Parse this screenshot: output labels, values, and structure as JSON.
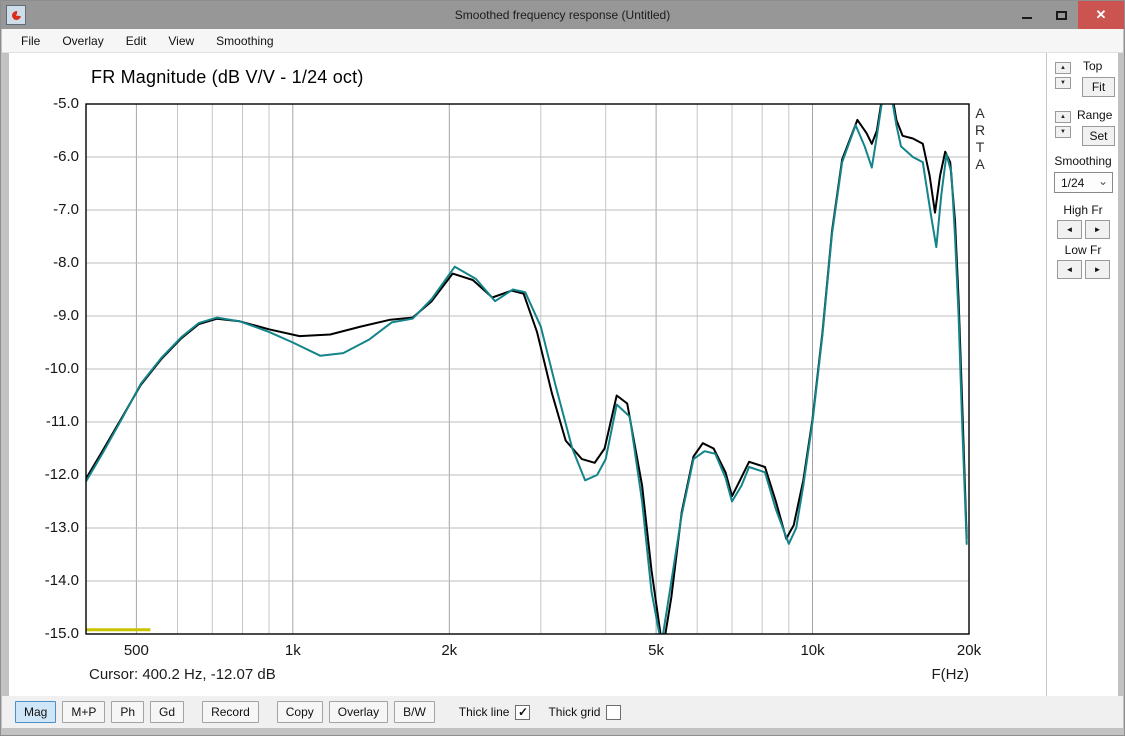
{
  "window": {
    "title": "Smoothed frequency response (Untitled)",
    "controls": {
      "minimize": "minimize",
      "maximize": "maximize",
      "close_glyph": "✕"
    },
    "colors": {
      "titlebar": "#979797",
      "close_button": "#cb5450"
    }
  },
  "menu": {
    "items": [
      "File",
      "Overlay",
      "Edit",
      "View",
      "Smoothing"
    ]
  },
  "chart": {
    "title": "FR Magnitude (dB V/V - 1/24 oct)",
    "cursor_readout": "Cursor: 400.2 Hz, -12.07 dB",
    "x_unit_label": "F(Hz)",
    "watermark": "ARTA"
  },
  "chart_data": {
    "type": "line",
    "title": "FR Magnitude (dB V/V - 1/24 oct)",
    "xlabel": "F(Hz)",
    "ylabel": "dB",
    "x_scale": "log",
    "x_range": [
      400,
      20000
    ],
    "y_range": [
      -15,
      -5
    ],
    "grid": true,
    "x_gridlines": [
      {
        "f": 500,
        "label": "500",
        "major": true
      },
      {
        "f": 600,
        "major": false
      },
      {
        "f": 700,
        "major": false
      },
      {
        "f": 800,
        "major": false
      },
      {
        "f": 900,
        "major": false
      },
      {
        "f": 1000,
        "label": "1k",
        "major": true
      },
      {
        "f": 2000,
        "label": "2k",
        "major": true
      },
      {
        "f": 3000,
        "major": false
      },
      {
        "f": 4000,
        "major": false
      },
      {
        "f": 5000,
        "label": "5k",
        "major": true
      },
      {
        "f": 6000,
        "major": false
      },
      {
        "f": 7000,
        "major": false
      },
      {
        "f": 8000,
        "major": false
      },
      {
        "f": 9000,
        "major": false
      },
      {
        "f": 10000,
        "label": "10k",
        "major": true
      },
      {
        "f": 20000,
        "label": "20k",
        "major": true
      }
    ],
    "y_gridlines": [
      {
        "v": -5,
        "label": "-5.0"
      },
      {
        "v": -6,
        "label": "-6.0"
      },
      {
        "v": -7,
        "label": "-7.0"
      },
      {
        "v": -8,
        "label": "-8.0"
      },
      {
        "v": -9,
        "label": "-9.0"
      },
      {
        "v": -10,
        "label": "-10.0"
      },
      {
        "v": -11,
        "label": "-11.0"
      },
      {
        "v": -12,
        "label": "-12.0"
      },
      {
        "v": -13,
        "label": "-13.0"
      },
      {
        "v": -14,
        "label": "-14.0"
      },
      {
        "v": -15,
        "label": "-15.0"
      }
    ],
    "cursor_marker": {
      "f_start": 400,
      "f_end": 532,
      "dB": -14.92,
      "color": "#c9c400"
    },
    "cursor": {
      "frequency_hz": 400.2,
      "level_db": -12.07
    },
    "series": [
      {
        "name": "measurement-black",
        "color": "#000000",
        "width": 2,
        "points": [
          [
            400,
            -12.07
          ],
          [
            430,
            -11.55
          ],
          [
            470,
            -10.9
          ],
          [
            510,
            -10.3
          ],
          [
            560,
            -9.8
          ],
          [
            610,
            -9.42
          ],
          [
            660,
            -9.15
          ],
          [
            715,
            -9.05
          ],
          [
            790,
            -9.1
          ],
          [
            900,
            -9.25
          ],
          [
            1030,
            -9.38
          ],
          [
            1180,
            -9.35
          ],
          [
            1350,
            -9.2
          ],
          [
            1540,
            -9.07
          ],
          [
            1700,
            -9.03
          ],
          [
            1850,
            -8.72
          ],
          [
            2030,
            -8.2
          ],
          [
            2220,
            -8.32
          ],
          [
            2420,
            -8.65
          ],
          [
            2640,
            -8.52
          ],
          [
            2780,
            -8.58
          ],
          [
            2950,
            -9.3
          ],
          [
            3150,
            -10.45
          ],
          [
            3350,
            -11.35
          ],
          [
            3600,
            -11.7
          ],
          [
            3810,
            -11.77
          ],
          [
            3980,
            -11.5
          ],
          [
            4200,
            -10.5
          ],
          [
            4400,
            -10.65
          ],
          [
            4700,
            -12.2
          ],
          [
            4900,
            -13.8
          ],
          [
            5150,
            -15.3
          ],
          [
            5350,
            -14.3
          ],
          [
            5600,
            -12.7
          ],
          [
            5900,
            -11.65
          ],
          [
            6150,
            -11.4
          ],
          [
            6450,
            -11.5
          ],
          [
            6800,
            -11.95
          ],
          [
            7000,
            -12.4
          ],
          [
            7250,
            -12.1
          ],
          [
            7550,
            -11.75
          ],
          [
            8100,
            -11.85
          ],
          [
            8500,
            -12.5
          ],
          [
            8900,
            -13.2
          ],
          [
            9200,
            -12.95
          ],
          [
            9600,
            -12.1
          ],
          [
            10000,
            -10.95
          ],
          [
            10450,
            -9.3
          ],
          [
            10900,
            -7.4
          ],
          [
            11400,
            -6.05
          ],
          [
            12200,
            -5.3
          ],
          [
            12700,
            -5.55
          ],
          [
            13000,
            -5.75
          ],
          [
            13300,
            -5.5
          ],
          [
            13700,
            -4.7
          ],
          [
            14100,
            -4.6
          ],
          [
            14500,
            -5.3
          ],
          [
            14900,
            -5.6
          ],
          [
            15600,
            -5.65
          ],
          [
            16300,
            -5.75
          ],
          [
            16800,
            -6.35
          ],
          [
            17200,
            -7.05
          ],
          [
            17600,
            -6.35
          ],
          [
            18000,
            -5.9
          ],
          [
            18400,
            -6.1
          ],
          [
            18800,
            -7.2
          ],
          [
            19100,
            -8.7
          ],
          [
            19400,
            -10.6
          ],
          [
            19800,
            -13.2
          ]
        ]
      },
      {
        "name": "measurement-teal",
        "color": "#13848a",
        "width": 2,
        "points": [
          [
            400,
            -12.12
          ],
          [
            430,
            -11.6
          ],
          [
            470,
            -10.92
          ],
          [
            510,
            -10.28
          ],
          [
            560,
            -9.78
          ],
          [
            610,
            -9.4
          ],
          [
            660,
            -9.13
          ],
          [
            715,
            -9.03
          ],
          [
            790,
            -9.1
          ],
          [
            900,
            -9.3
          ],
          [
            1000,
            -9.5
          ],
          [
            1130,
            -9.75
          ],
          [
            1250,
            -9.7
          ],
          [
            1400,
            -9.45
          ],
          [
            1550,
            -9.12
          ],
          [
            1700,
            -9.05
          ],
          [
            1850,
            -8.68
          ],
          [
            2050,
            -8.07
          ],
          [
            2250,
            -8.3
          ],
          [
            2450,
            -8.72
          ],
          [
            2650,
            -8.5
          ],
          [
            2800,
            -8.55
          ],
          [
            3000,
            -9.2
          ],
          [
            3200,
            -10.3
          ],
          [
            3450,
            -11.5
          ],
          [
            3650,
            -12.1
          ],
          [
            3850,
            -12.0
          ],
          [
            4000,
            -11.7
          ],
          [
            4200,
            -10.67
          ],
          [
            4450,
            -10.9
          ],
          [
            4700,
            -12.5
          ],
          [
            4900,
            -14.2
          ],
          [
            5120,
            -15.2
          ],
          [
            5350,
            -14.0
          ],
          [
            5600,
            -12.75
          ],
          [
            5900,
            -11.7
          ],
          [
            6200,
            -11.55
          ],
          [
            6500,
            -11.6
          ],
          [
            6800,
            -12.05
          ],
          [
            7000,
            -12.5
          ],
          [
            7300,
            -12.2
          ],
          [
            7550,
            -11.85
          ],
          [
            8100,
            -11.95
          ],
          [
            8500,
            -12.65
          ],
          [
            9000,
            -13.3
          ],
          [
            9300,
            -13.0
          ],
          [
            9600,
            -12.2
          ],
          [
            10000,
            -11.0
          ],
          [
            10450,
            -9.35
          ],
          [
            10900,
            -7.45
          ],
          [
            11400,
            -6.1
          ],
          [
            12100,
            -5.4
          ],
          [
            12600,
            -5.8
          ],
          [
            13000,
            -6.2
          ],
          [
            13300,
            -5.6
          ],
          [
            13700,
            -4.75
          ],
          [
            14100,
            -4.7
          ],
          [
            14500,
            -5.4
          ],
          [
            14800,
            -5.8
          ],
          [
            15600,
            -6.0
          ],
          [
            16300,
            -6.1
          ],
          [
            16900,
            -7.1
          ],
          [
            17300,
            -7.7
          ],
          [
            17700,
            -6.7
          ],
          [
            18100,
            -5.95
          ],
          [
            18500,
            -6.3
          ],
          [
            18800,
            -7.5
          ],
          [
            19100,
            -9.0
          ],
          [
            19400,
            -11.0
          ],
          [
            19800,
            -13.3
          ]
        ]
      }
    ]
  },
  "side_panel": {
    "top_label": "Top",
    "fit_button": "Fit",
    "range_label": "Range",
    "set_button": "Set",
    "smoothing_label": "Smoothing",
    "smoothing_value": "1/24",
    "high_fr_label": "High Fr",
    "low_fr_label": "Low Fr"
  },
  "toolbar": {
    "buttons": [
      {
        "label": "Mag",
        "active": true
      },
      {
        "label": "M+P",
        "active": false
      },
      {
        "label": "Ph",
        "active": false
      },
      {
        "label": "Gd",
        "active": false
      },
      {
        "label": "Record",
        "active": false,
        "gap": true
      },
      {
        "label": "Copy",
        "active": false,
        "gap": true
      },
      {
        "label": "Overlay",
        "active": false
      },
      {
        "label": "B/W",
        "active": false
      }
    ],
    "checkboxes": [
      {
        "label": "Thick line",
        "checked": true
      },
      {
        "label": "Thick grid",
        "checked": false
      }
    ]
  },
  "icons": {
    "spin_up": "▲",
    "spin_down": "▼",
    "arrow_left": "◄",
    "arrow_right": "►",
    "dropdown_chevron": "⌄",
    "check": "✓"
  }
}
